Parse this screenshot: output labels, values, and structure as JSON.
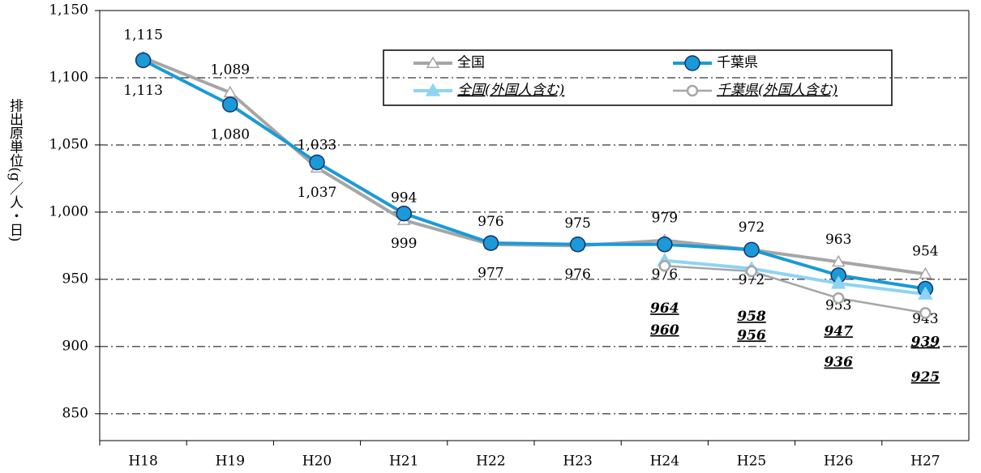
{
  "chart_data": {
    "type": "line",
    "y_label": "排出原単位(g／人・日)",
    "categories": [
      "H18",
      "H19",
      "H20",
      "H21",
      "H22",
      "H23",
      "H24",
      "H25",
      "H26",
      "H27"
    ],
    "ylim": [
      830,
      1150
    ],
    "yticks": [
      850,
      900,
      950,
      {
        "value": 1000,
        "label": "1,000"
      },
      {
        "value": 1050,
        "label": "1,050"
      },
      {
        "value": 1100,
        "label": "1,100"
      },
      {
        "value": 1150,
        "label": "1,150"
      }
    ],
    "grid": true,
    "series": [
      {
        "name": "全国",
        "color": "#a6a6a6",
        "marker": "triangle",
        "values": [
          1115,
          1089,
          1033,
          994,
          976,
          975,
          979,
          972,
          963,
          954
        ],
        "value_labels": [
          "1,115",
          "1,089",
          "1,033",
          "994",
          "976",
          "975",
          "979",
          "972",
          "963",
          "954"
        ]
      },
      {
        "name": "千葉県",
        "color": "#1a9ad6",
        "marker": "circle",
        "values": [
          1113,
          1080,
          1037,
          999,
          977,
          976,
          976,
          972,
          953,
          943
        ],
        "value_labels": [
          "1,113",
          "1,080",
          "1,037",
          "999",
          "977",
          "976",
          "976",
          "972",
          "953",
          "943"
        ]
      },
      {
        "name": "全国(外国人含む)",
        "color": "#8fd3f4",
        "marker": "triangle",
        "values": [
          null,
          null,
          null,
          null,
          null,
          null,
          964,
          958,
          947,
          939
        ]
      },
      {
        "name": "千葉県(外国人含む)",
        "color": "#a6a6a6",
        "marker": "circle",
        "values": [
          null,
          null,
          null,
          null,
          null,
          null,
          960,
          956,
          936,
          925
        ]
      }
    ]
  }
}
